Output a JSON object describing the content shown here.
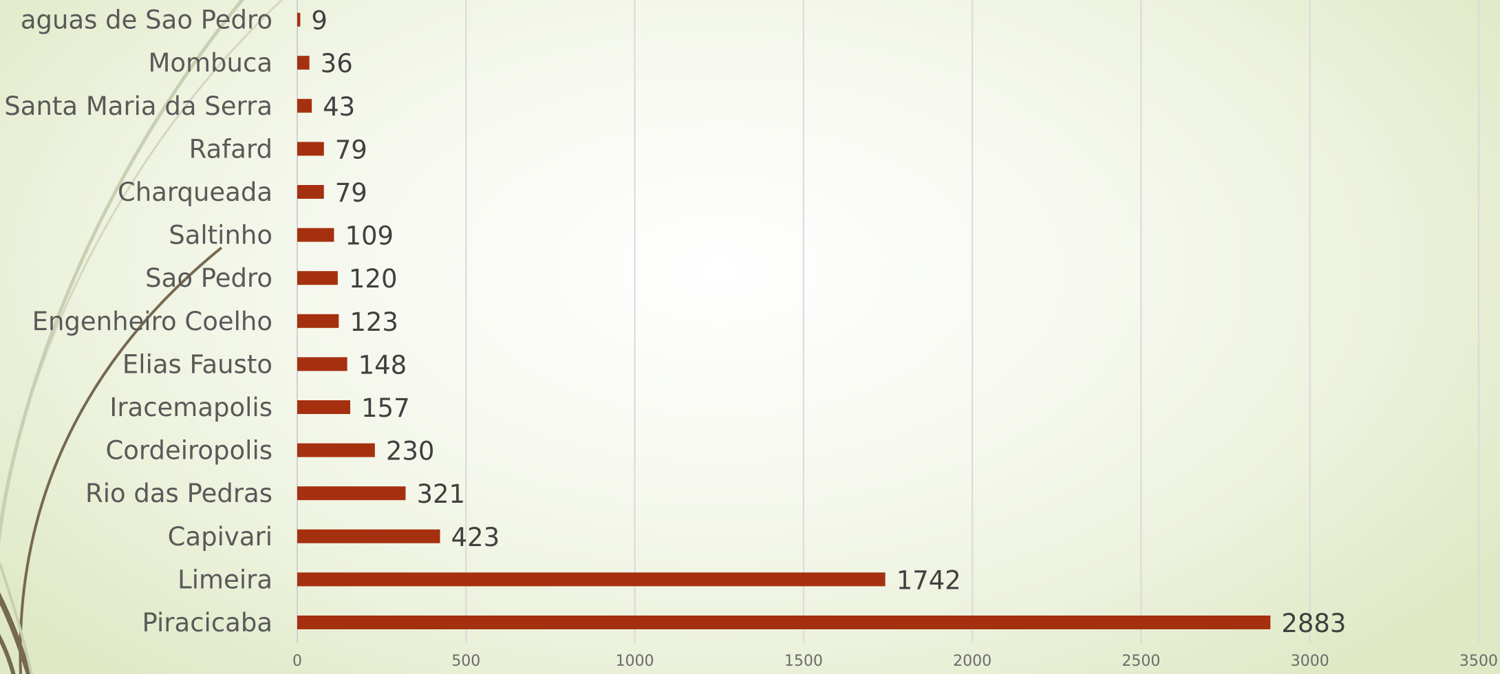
{
  "theme": {
    "bar_color": "#a5300f",
    "swoosh_color": "#76694f",
    "swoosh_light_color": "#c9cfb2"
  },
  "chart_data": {
    "type": "bar",
    "orientation": "horizontal",
    "title": "",
    "xlabel": "",
    "ylabel": "",
    "categories": [
      "Piracicaba",
      "Limeira",
      "Capivari",
      "Rio das Pedras",
      "Cordeiropolis",
      "Iracemapolis",
      "Elias Fausto",
      "Engenheiro Coelho",
      "Sao Pedro",
      "Saltinho",
      "Charqueada",
      "Rafard",
      "Santa Maria da Serra",
      "Mombuca",
      "aguas de Sao Pedro"
    ],
    "values": [
      2883,
      1742,
      423,
      321,
      230,
      157,
      148,
      123,
      120,
      109,
      79,
      79,
      43,
      36,
      9
    ],
    "xlim": [
      0,
      3500
    ],
    "xticks": [
      0,
      500,
      1000,
      1500,
      2000,
      2500,
      3000,
      3500
    ],
    "grid": true,
    "legend": "none",
    "data_labels": true
  }
}
